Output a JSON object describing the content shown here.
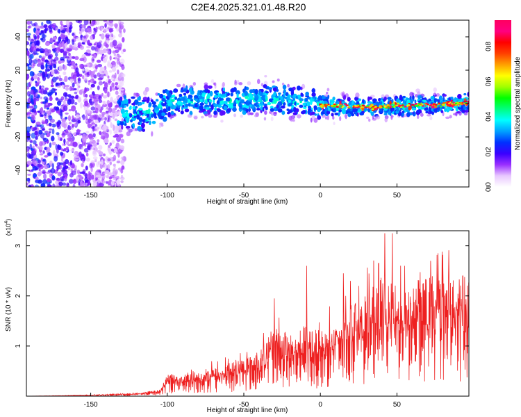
{
  "title": "C2E4.2025.321.01.48.R20",
  "chart_data": [
    {
      "type": "heatmap",
      "xlabel": "Height of straight line (km)",
      "ylabel": "Frequency (Hz)",
      "xlim": [
        -192,
        97
      ],
      "ylim": [
        -50,
        50
      ],
      "x_ticks": [
        -150,
        -100,
        -50,
        0,
        50
      ],
      "y_ticks": [
        -40,
        -20,
        0,
        20,
        40
      ],
      "colorbar": {
        "label": "Normalized spectral amplitude",
        "range": [
          0.0,
          0.95
        ],
        "ticks": [
          0.0,
          0.2,
          0.4,
          0.6,
          0.8
        ],
        "tick_labels": [
          "0.0",
          "0.2",
          "0.4",
          "0.6",
          "0.8"
        ],
        "colors": [
          "#ffffff",
          "#e8c8ff",
          "#9a30ff",
          "#3a00ff",
          "#0030ff",
          "#00a0ff",
          "#00ffff",
          "#00ff80",
          "#00ff00",
          "#a0ff00",
          "#ffff00",
          "#ffa000",
          "#ff4000",
          "#ff0000",
          "#ff0080",
          "#ff0060"
        ]
      },
      "ridge_center_hz": [
        {
          "x": -130,
          "y": -5
        },
        {
          "x": -110,
          "y": -7
        },
        {
          "x": -100,
          "y": 1
        },
        {
          "x": -80,
          "y": 2
        },
        {
          "x": -50,
          "y": 2
        },
        {
          "x": -35,
          "y": 3
        },
        {
          "x": -25,
          "y": 2
        },
        {
          "x": -10,
          "y": 1
        },
        {
          "x": 0,
          "y": -1
        },
        {
          "x": 30,
          "y": -2
        },
        {
          "x": 60,
          "y": -1
        },
        {
          "x": 95,
          "y": 0
        }
      ],
      "noise_region_km": [
        -192,
        -128
      ]
    },
    {
      "type": "line",
      "xlabel": "Height of straight line (km)",
      "ylabel": "SNR (10 * v/v)",
      "y_scale_label": "(x10",
      "y_scale_exponent": "4",
      "y_scale_close": ")",
      "xlim": [
        -192,
        97
      ],
      "ylim": [
        0,
        3.3
      ],
      "x_ticks": [
        -150,
        -100,
        -50,
        0,
        50
      ],
      "y_ticks": [
        1,
        2,
        3
      ],
      "line_color": "#ee2020",
      "envelope": [
        {
          "x": -192,
          "y": 0.0
        },
        {
          "x": -150,
          "y": 0.02
        },
        {
          "x": -120,
          "y": 0.05
        },
        {
          "x": -105,
          "y": 0.1
        },
        {
          "x": -100,
          "y": 0.35
        },
        {
          "x": -80,
          "y": 0.4
        },
        {
          "x": -60,
          "y": 0.5
        },
        {
          "x": -40,
          "y": 0.7
        },
        {
          "x": -30,
          "y": 1.1
        },
        {
          "x": -20,
          "y": 0.95
        },
        {
          "x": -10,
          "y": 1.1
        },
        {
          "x": 0,
          "y": 1.0
        },
        {
          "x": 10,
          "y": 1.2
        },
        {
          "x": 20,
          "y": 1.45
        },
        {
          "x": 30,
          "y": 1.6
        },
        {
          "x": 40,
          "y": 1.8
        },
        {
          "x": 50,
          "y": 1.7
        },
        {
          "x": 60,
          "y": 1.8
        },
        {
          "x": 75,
          "y": 1.85
        },
        {
          "x": 97,
          "y": 1.85
        }
      ],
      "peaks": [
        {
          "x": -30,
          "y": 1.95
        },
        {
          "x": -9,
          "y": 2.6
        },
        {
          "x": 15,
          "y": 2.45
        },
        {
          "x": 38,
          "y": 2.65
        },
        {
          "x": 42,
          "y": 3.25
        },
        {
          "x": 47,
          "y": 3.25
        },
        {
          "x": 55,
          "y": 2.6
        },
        {
          "x": 72,
          "y": 2.7
        },
        {
          "x": 93,
          "y": 2.4
        }
      ]
    }
  ]
}
